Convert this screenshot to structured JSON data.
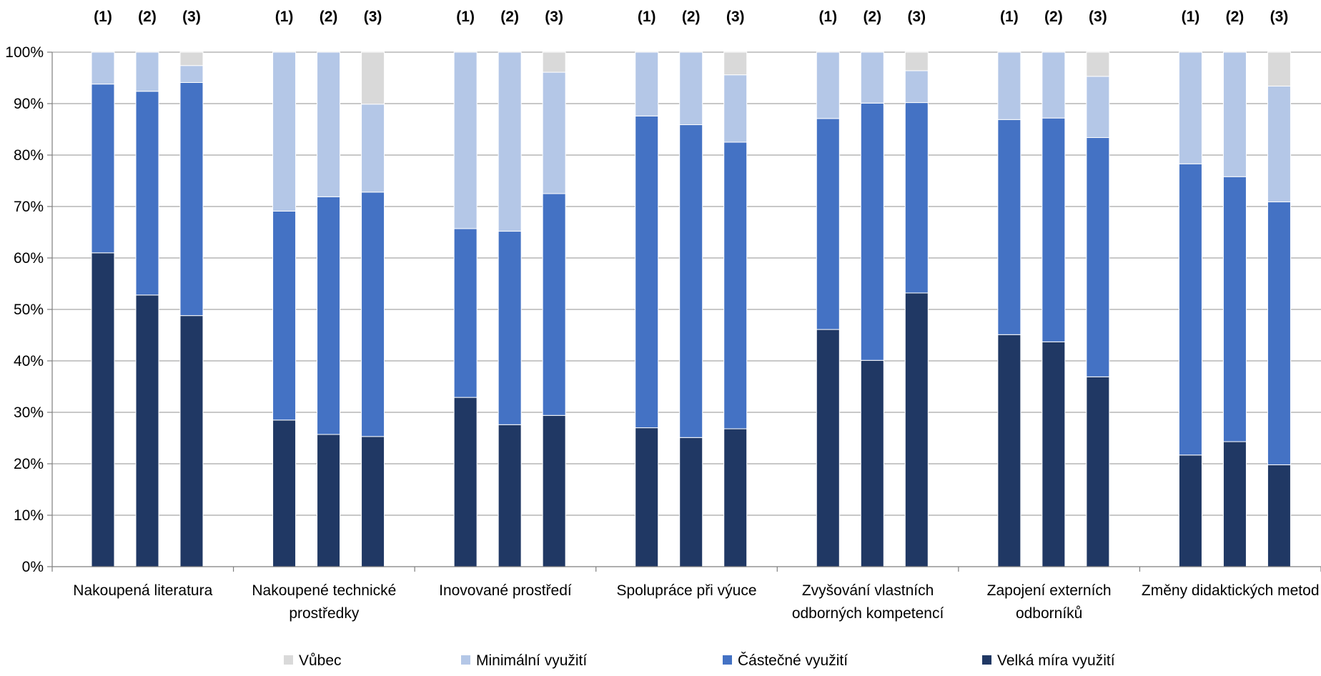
{
  "chart_data": {
    "type": "stacked-bar",
    "percent_stacked": true,
    "y_tick_labels": [
      "0%",
      "10%",
      "20%",
      "30%",
      "40%",
      "50%",
      "60%",
      "70%",
      "80%",
      "90%",
      "100%"
    ],
    "ylim": [
      0,
      100
    ],
    "grid": true,
    "legend_position": "bottom",
    "bar_labels": [
      "(1)",
      "(2)",
      "(3)"
    ],
    "categories": [
      [
        "Nakoupená literatura"
      ],
      [
        "Nakoupené technické",
        "prostředky"
      ],
      [
        "Inovované prostředí"
      ],
      [
        "Spolupráce při výuce"
      ],
      [
        "Zvyšování vlastních",
        "odborných kompetencí"
      ],
      [
        "Zapojení externích",
        "odborníků"
      ],
      [
        "Změny didaktických metod"
      ]
    ],
    "series": [
      {
        "name": "Velká míra využití",
        "color": "#203864",
        "values": [
          [
            61.0,
            52.8,
            48.8
          ],
          [
            28.5,
            25.7,
            25.3
          ],
          [
            32.9,
            27.6,
            29.4
          ],
          [
            27.0,
            25.1,
            26.8
          ],
          [
            46.1,
            40.1,
            53.2
          ],
          [
            45.1,
            43.7,
            36.9
          ],
          [
            21.7,
            24.3,
            19.8
          ]
        ]
      },
      {
        "name": "Částečné využití",
        "color": "#4472C4",
        "values": [
          [
            32.8,
            39.6,
            45.3
          ],
          [
            40.6,
            46.2,
            47.5
          ],
          [
            32.8,
            37.6,
            43.1
          ],
          [
            60.6,
            60.8,
            55.7
          ],
          [
            41.0,
            50.0,
            37.0
          ],
          [
            41.8,
            43.5,
            46.5
          ],
          [
            56.6,
            51.5,
            51.1
          ]
        ]
      },
      {
        "name": "Minimální využití",
        "color": "#B4C7E7",
        "values": [
          [
            6.2,
            7.6,
            3.3
          ],
          [
            30.9,
            28.1,
            17.1
          ],
          [
            34.3,
            34.8,
            23.6
          ],
          [
            12.4,
            14.1,
            13.1
          ],
          [
            12.9,
            9.9,
            6.2
          ],
          [
            13.1,
            12.8,
            11.9
          ],
          [
            21.7,
            24.2,
            22.5
          ]
        ]
      },
      {
        "name": "Vůbec",
        "color": "#D9D9D9",
        "values": [
          [
            0,
            0,
            2.6
          ],
          [
            0,
            0,
            10.1
          ],
          [
            0,
            0,
            3.9
          ],
          [
            0,
            0,
            4.4
          ],
          [
            0,
            0,
            3.6
          ],
          [
            0,
            0,
            4.7
          ],
          [
            0,
            0,
            6.6
          ]
        ]
      }
    ],
    "legend_order": [
      "Vůbec",
      "Minimální využití",
      "Částečné využití",
      "Velká míra využití"
    ]
  }
}
